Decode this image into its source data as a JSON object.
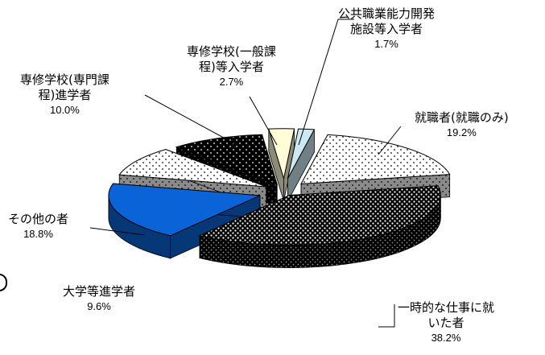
{
  "chart_data": {
    "type": "pie",
    "style": "3d-exploded",
    "slices": [
      {
        "name": "公共職業能力開発施設等入学者",
        "name_lines": [
          "公共職業能力開発",
          "施設等入学者"
        ],
        "value": 1.7,
        "label": "1.7%",
        "color": "#cce8f2",
        "pattern": "solid"
      },
      {
        "name": "就職者(就職のみ)",
        "name_lines": [
          "就職者(就職のみ)"
        ],
        "value": 19.2,
        "label": "19.2%",
        "color": "#ffffff",
        "pattern": "sparse-dots"
      },
      {
        "name": "一時的な仕事に就いた者",
        "name_lines": [
          "一時的な仕事に就",
          "いた者"
        ],
        "value": 38.2,
        "label": "38.2%",
        "color": "#000000",
        "pattern": "dense-dots"
      },
      {
        "name": "その他の者",
        "name_lines": [
          "その他の者"
        ],
        "value": 18.8,
        "label": "18.8%",
        "color": "#0a64d8",
        "pattern": "solid"
      },
      {
        "name": "大学等進学者",
        "name_lines": [
          "大学等進学者"
        ],
        "value": 9.6,
        "label": "9.6%",
        "color": "#ffffff",
        "pattern": "sparse-dots"
      },
      {
        "name": "専修学校(専門課程)進学者",
        "name_lines": [
          "専修学校(専門課",
          "程)進学者"
        ],
        "value": 10.0,
        "label": "10.0%",
        "color": "#000000",
        "pattern": "dark-dots"
      },
      {
        "name": "専修学校(一般課程)等入学者",
        "name_lines": [
          "専修学校(一般課",
          "程)等入学者"
        ],
        "value": 2.7,
        "label": "2.7%",
        "color": "#fffdd8",
        "pattern": "solid"
      }
    ],
    "legend": "none",
    "title": ""
  }
}
